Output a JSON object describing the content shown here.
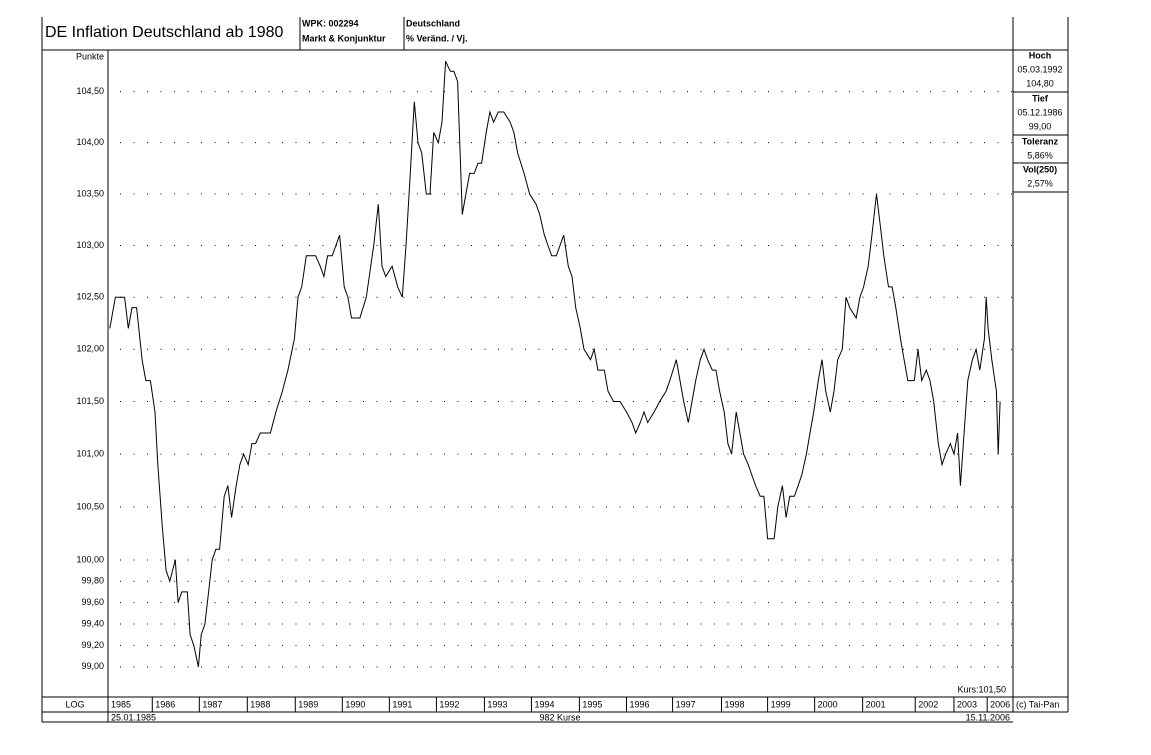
{
  "chart_data": {
    "type": "line",
    "title": "DE Inflation Deutschland ab 1980",
    "wpk": "WPK: 002294",
    "group": "Markt & Konjunktur",
    "region": "Deutschland",
    "measure": "% Veränd. / Vj.",
    "y_label": "Punkte",
    "scale_label": "LOG",
    "start_label": "25.01.1985",
    "count_label": "982 Kurse",
    "end_label": "15.11.2006",
    "last_label": "Kurs:101,50",
    "copyright": "(c) Tai-Pan",
    "stats": [
      {
        "label": "Hoch",
        "date": "05.03.1992",
        "value": "104,80"
      },
      {
        "label": "Tief",
        "date": "05.12.1986",
        "value": "99,00"
      },
      {
        "label": "Toleranz",
        "value": "5,86%"
      },
      {
        "label": "Vol(250)",
        "value": "2,57%"
      }
    ],
    "log_scale": true,
    "grid": true,
    "color": "#000000",
    "xlim": [
      0,
      981
    ],
    "xticks": [
      {
        "value": 0,
        "label": "1985"
      },
      {
        "value": 48,
        "label": "1986"
      },
      {
        "value": 99,
        "label": "1987"
      },
      {
        "value": 151,
        "label": "1988"
      },
      {
        "value": 203,
        "label": "1989"
      },
      {
        "value": 254,
        "label": "1990"
      },
      {
        "value": 305,
        "label": "1991"
      },
      {
        "value": 356,
        "label": "1992"
      },
      {
        "value": 408,
        "label": "1993"
      },
      {
        "value": 459,
        "label": "1994"
      },
      {
        "value": 511,
        "label": "1995"
      },
      {
        "value": 562,
        "label": "1996"
      },
      {
        "value": 612,
        "label": "1997"
      },
      {
        "value": 665,
        "label": "1998"
      },
      {
        "value": 715,
        "label": "1999"
      },
      {
        "value": 766,
        "label": "2000"
      },
      {
        "value": 818,
        "label": "2001"
      },
      {
        "value": 875,
        "label": "2002"
      },
      {
        "value": 917,
        "label": "2003"
      },
      {
        "value": 953,
        "label": "2006"
      }
    ],
    "ylim": [
      98.72,
      104.91
    ],
    "yticks": [
      {
        "value": 99,
        "label": "99,00"
      },
      {
        "value": 99.2,
        "label": "99,20"
      },
      {
        "value": 99.4,
        "label": "99,40"
      },
      {
        "value": 99.6,
        "label": "99,60"
      },
      {
        "value": 99.8,
        "label": "99,80"
      },
      {
        "value": 100,
        "label": "100,00"
      },
      {
        "value": 100.5,
        "label": "100,50"
      },
      {
        "value": 101,
        "label": "101,00"
      },
      {
        "value": 101.5,
        "label": "101,50"
      },
      {
        "value": 102,
        "label": "102,00"
      },
      {
        "value": 102.5,
        "label": "102,50"
      },
      {
        "value": 103,
        "label": "103,00"
      },
      {
        "value": 103.5,
        "label": "103,50"
      },
      {
        "value": 104,
        "label": "104,00"
      },
      {
        "value": 104.5,
        "label": "104,50"
      }
    ],
    "x": [
      2,
      8,
      18,
      22,
      26,
      31,
      37,
      41,
      46,
      51,
      54,
      59,
      63,
      67,
      73,
      76,
      80,
      86,
      89,
      93,
      98,
      101,
      105,
      109,
      113,
      117,
      121,
      126,
      130,
      134,
      139,
      143,
      147,
      152,
      156,
      160,
      165,
      176,
      182,
      189,
      195,
      202,
      206,
      210,
      215,
      225,
      230,
      234,
      238,
      243,
      247,
      251,
      256,
      260,
      264,
      273,
      280,
      288,
      293,
      297,
      301,
      308,
      314,
      319,
      323,
      327,
      332,
      336,
      340,
      345,
      349,
      353,
      358,
      362,
      366,
      371,
      375,
      379,
      384,
      388,
      392,
      397,
      401,
      405,
      410,
      414,
      418,
      423,
      429,
      436,
      440,
      444,
      451,
      457,
      464,
      468,
      473,
      477,
      481,
      486,
      490,
      494,
      499,
      503,
      507,
      512,
      516,
      523,
      527,
      531,
      538,
      542,
      548,
      555,
      562,
      568,
      572,
      577,
      581,
      585,
      592,
      598,
      605,
      609,
      616,
      620,
      624,
      629,
      633,
      637,
      642,
      646,
      650,
      655,
      659,
      663,
      668,
      672,
      676,
      681,
      685,
      689,
      694,
      698,
      702,
      707,
      711,
      715,
      722,
      726,
      731,
      735,
      739,
      744,
      748,
      752,
      757,
      761,
      765,
      770,
      774,
      778,
      783,
      787,
      791,
      796,
      800,
      804,
      811,
      815,
      819,
      824,
      828,
      833,
      837,
      841,
      846,
      850,
      854,
      859,
      863,
      867,
      874,
      878,
      882,
      887,
      891,
      895,
      900,
      904,
      908,
      913,
      917,
      921,
      924,
      928,
      932,
      937,
      941,
      945,
      950,
      952,
      954,
      958,
      963,
      965,
      967
    ],
    "values": [
      102.2,
      102.5,
      102.5,
      102.2,
      102.4,
      102.4,
      101.9,
      101.7,
      101.7,
      101.4,
      100.9,
      100.3,
      99.9,
      99.8,
      100.0,
      99.6,
      99.7,
      99.7,
      99.3,
      99.2,
      99.0,
      99.3,
      99.4,
      99.7,
      100.0,
      100.1,
      100.1,
      100.6,
      100.7,
      100.4,
      100.7,
      100.9,
      101.0,
      100.9,
      101.1,
      101.1,
      101.2,
      101.2,
      101.4,
      101.6,
      101.8,
      102.1,
      102.5,
      102.6,
      102.9,
      102.9,
      102.8,
      102.7,
      102.9,
      102.9,
      103.0,
      103.1,
      102.6,
      102.5,
      102.3,
      102.3,
      102.5,
      103.0,
      103.4,
      102.8,
      102.7,
      102.8,
      102.6,
      102.5,
      103.0,
      103.6,
      104.4,
      104.0,
      103.9,
      103.5,
      103.5,
      104.1,
      104.0,
      104.2,
      104.8,
      104.7,
      104.7,
      104.6,
      103.3,
      103.5,
      103.7,
      103.7,
      103.8,
      103.8,
      104.1,
      104.3,
      104.2,
      104.3,
      104.3,
      104.2,
      104.1,
      103.9,
      103.7,
      103.5,
      103.4,
      103.3,
      103.1,
      103.0,
      102.9,
      102.9,
      103.0,
      103.1,
      102.8,
      102.7,
      102.4,
      102.2,
      102.0,
      101.9,
      102.0,
      101.8,
      101.8,
      101.6,
      101.5,
      101.5,
      101.4,
      101.3,
      101.2,
      101.3,
      101.4,
      101.3,
      101.4,
      101.5,
      101.6,
      101.7,
      101.9,
      101.7,
      101.5,
      101.3,
      101.5,
      101.7,
      101.9,
      102.0,
      101.9,
      101.8,
      101.8,
      101.6,
      101.4,
      101.1,
      101.0,
      101.4,
      101.2,
      101.0,
      100.9,
      100.8,
      100.7,
      100.6,
      100.6,
      100.2,
      100.2,
      100.5,
      100.7,
      100.4,
      100.6,
      100.6,
      100.7,
      100.8,
      101.0,
      101.2,
      101.4,
      101.7,
      101.9,
      101.6,
      101.4,
      101.6,
      101.9,
      102.0,
      102.5,
      102.4,
      102.3,
      102.5,
      102.6,
      102.8,
      103.1,
      103.5,
      103.2,
      102.9,
      102.6,
      102.6,
      102.4,
      102.1,
      101.9,
      101.7,
      101.7,
      102.0,
      101.7,
      101.8,
      101.7,
      101.5,
      101.1,
      100.9,
      101.0,
      101.1,
      101.0,
      101.2,
      100.7,
      101.2,
      101.7,
      101.9,
      102.0,
      101.8,
      102.1,
      102.5,
      102.2,
      101.9,
      101.6,
      101.0,
      101.5
    ]
  }
}
